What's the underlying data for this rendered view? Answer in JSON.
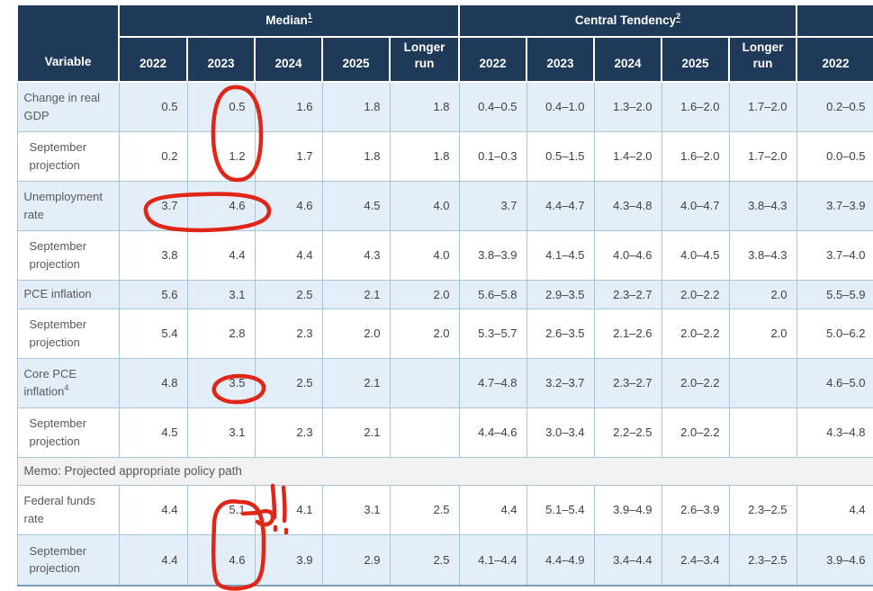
{
  "table": {
    "header": {
      "variable_label": "Variable",
      "groups": [
        {
          "label": "Median",
          "superscript": "1"
        },
        {
          "label": "Central Tendency",
          "superscript": "2"
        },
        {
          "label": ""
        }
      ],
      "median_years": [
        "2022",
        "2023",
        "2024",
        "2025",
        "Longer run"
      ],
      "ct_years": [
        "2022",
        "2023",
        "2024",
        "2025",
        "Longer run"
      ],
      "range_years": [
        "2022"
      ]
    },
    "rows": [
      {
        "label": "Change in real GDP",
        "label_sup": "",
        "indent": false,
        "shade": true,
        "cells": [
          "0.5",
          "0.5",
          "1.6",
          "1.8",
          "1.8",
          "0.4–0.5",
          "0.4–1.0",
          "1.3–2.0",
          "1.6–2.0",
          "1.7–2.0",
          "0.2–0.5"
        ]
      },
      {
        "label": "September projection",
        "label_sup": "",
        "indent": true,
        "shade": false,
        "cells": [
          "0.2",
          "1.2",
          "1.7",
          "1.8",
          "1.8",
          "0.1–0.3",
          "0.5–1.5",
          "1.4–2.0",
          "1.6–2.0",
          "1.7–2.0",
          "0.0–0.5"
        ]
      },
      {
        "label": "Unemployment rate",
        "label_sup": "",
        "indent": false,
        "shade": true,
        "cells": [
          "3.7",
          "4.6",
          "4.6",
          "4.5",
          "4.0",
          "3.7",
          "4.4–4.7",
          "4.3–4.8",
          "4.0–4.7",
          "3.8–4.3",
          "3.7–3.9"
        ]
      },
      {
        "label": "September projection",
        "label_sup": "",
        "indent": true,
        "shade": false,
        "cells": [
          "3.8",
          "4.4",
          "4.4",
          "4.3",
          "4.0",
          "3.8–3.9",
          "4.1–4.5",
          "4.0–4.6",
          "4.0–4.5",
          "3.8–4.3",
          "3.7–4.0"
        ]
      },
      {
        "label": "PCE inflation",
        "label_sup": "",
        "indent": false,
        "shade": true,
        "cells": [
          "5.6",
          "3.1",
          "2.5",
          "2.1",
          "2.0",
          "5.6–5.8",
          "2.9–3.5",
          "2.3–2.7",
          "2.0–2.2",
          "2.0",
          "5.5–5.9"
        ]
      },
      {
        "label": "September projection",
        "label_sup": "",
        "indent": true,
        "shade": false,
        "cells": [
          "5.4",
          "2.8",
          "2.3",
          "2.0",
          "2.0",
          "5.3–5.7",
          "2.6–3.5",
          "2.1–2.6",
          "2.0–2.2",
          "2.0",
          "5.0–6.2"
        ]
      },
      {
        "label": "Core PCE inflation",
        "label_sup": "4",
        "indent": false,
        "shade": true,
        "cells": [
          "4.8",
          "3.5",
          "2.5",
          "2.1",
          "",
          "4.7–4.8",
          "3.2–3.7",
          "2.3–2.7",
          "2.0–2.2",
          "",
          "4.6–5.0"
        ]
      },
      {
        "label": "September projection",
        "label_sup": "",
        "indent": true,
        "shade": false,
        "cells": [
          "4.5",
          "3.1",
          "2.3",
          "2.1",
          "",
          "4.4–4.6",
          "3.0–3.4",
          "2.2–2.5",
          "2.0–2.2",
          "",
          "4.3–4.8"
        ]
      },
      {
        "type": "memo",
        "label": "Memo: Projected appropriate policy path"
      },
      {
        "label": "Federal funds rate",
        "label_sup": "",
        "indent": false,
        "shade": false,
        "cells": [
          "4.4",
          "5.1",
          "4.1",
          "3.1",
          "2.5",
          "4.4",
          "5.1–5.4",
          "3.9–4.9",
          "2.6–3.9",
          "2.3–2.5",
          "4.4"
        ]
      },
      {
        "label": "September projection",
        "label_sup": "",
        "indent": true,
        "shade": true,
        "cells": [
          "4.4",
          "4.6",
          "3.9",
          "2.9",
          "2.5",
          "4.1–4.4",
          "4.4–4.9",
          "3.4–4.4",
          "2.4–3.4",
          "2.3–2.5",
          "3.9–4.6"
        ]
      }
    ]
  },
  "annotations": {
    "color": "#e02617",
    "items": [
      "circle around 2023 GDP medians 0.5 and 1.2",
      "oval around unemployment 2022–2023 medians 3.7 and 4.6",
      "oval around core PCE 2023 median 3.5",
      "loop around federal funds 2023 medians 5.1 and 4.6",
      "double exclamation marks next to 5.1"
    ]
  },
  "colors": {
    "header_bg": "#1e3a58",
    "shaded_row_bg": "#e4eef8",
    "memo_bg": "#f2f2f2",
    "cell_border": "#a9c5da"
  }
}
